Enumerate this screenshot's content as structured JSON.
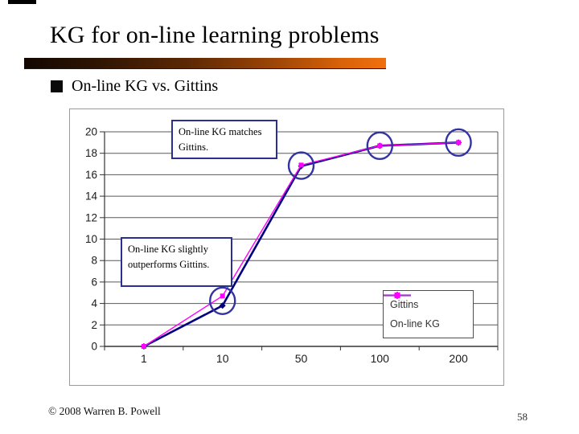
{
  "slide": {
    "title": "KG for on-line learning problems",
    "bullet": "On-line KG vs. Gittins",
    "footer": "© 2008 Warren B. Powell",
    "page_number": "58",
    "accent_bar_colors": [
      "#120700",
      "#f0700f"
    ]
  },
  "chart_data": {
    "type": "line",
    "title": "",
    "xlabel": "",
    "ylabel": "",
    "categories": [
      "1",
      "10",
      "50",
      "100",
      "200"
    ],
    "series": [
      {
        "name": "Gittins",
        "color": "#00007f",
        "marker": "diamond",
        "line_width": 2.6,
        "values": [
          0,
          3.8,
          16.8,
          18.7,
          19.0
        ]
      },
      {
        "name": "On-line KG",
        "color": "#ff00ff",
        "marker": "square",
        "line_width": 1.4,
        "values": [
          0,
          4.7,
          16.9,
          18.7,
          19.0
        ]
      }
    ],
    "ylim": [
      0,
      20
    ],
    "ytick_step": 2,
    "grid": true,
    "grid_color": "#595959",
    "axis_color": "#333333",
    "tick_label_color": "#1a1a1a",
    "legend_position": "inside-right",
    "circle_color": "#3333a2",
    "circled_category_indices": [
      1,
      2,
      3,
      4
    ],
    "annotations": [
      {
        "text": "On-line KG matches Gittins.",
        "refers_to": "points at 50, 100, 200"
      },
      {
        "text": "On-line KG slightly outperforms Gittins.",
        "refers_to": "points at 10"
      }
    ]
  }
}
